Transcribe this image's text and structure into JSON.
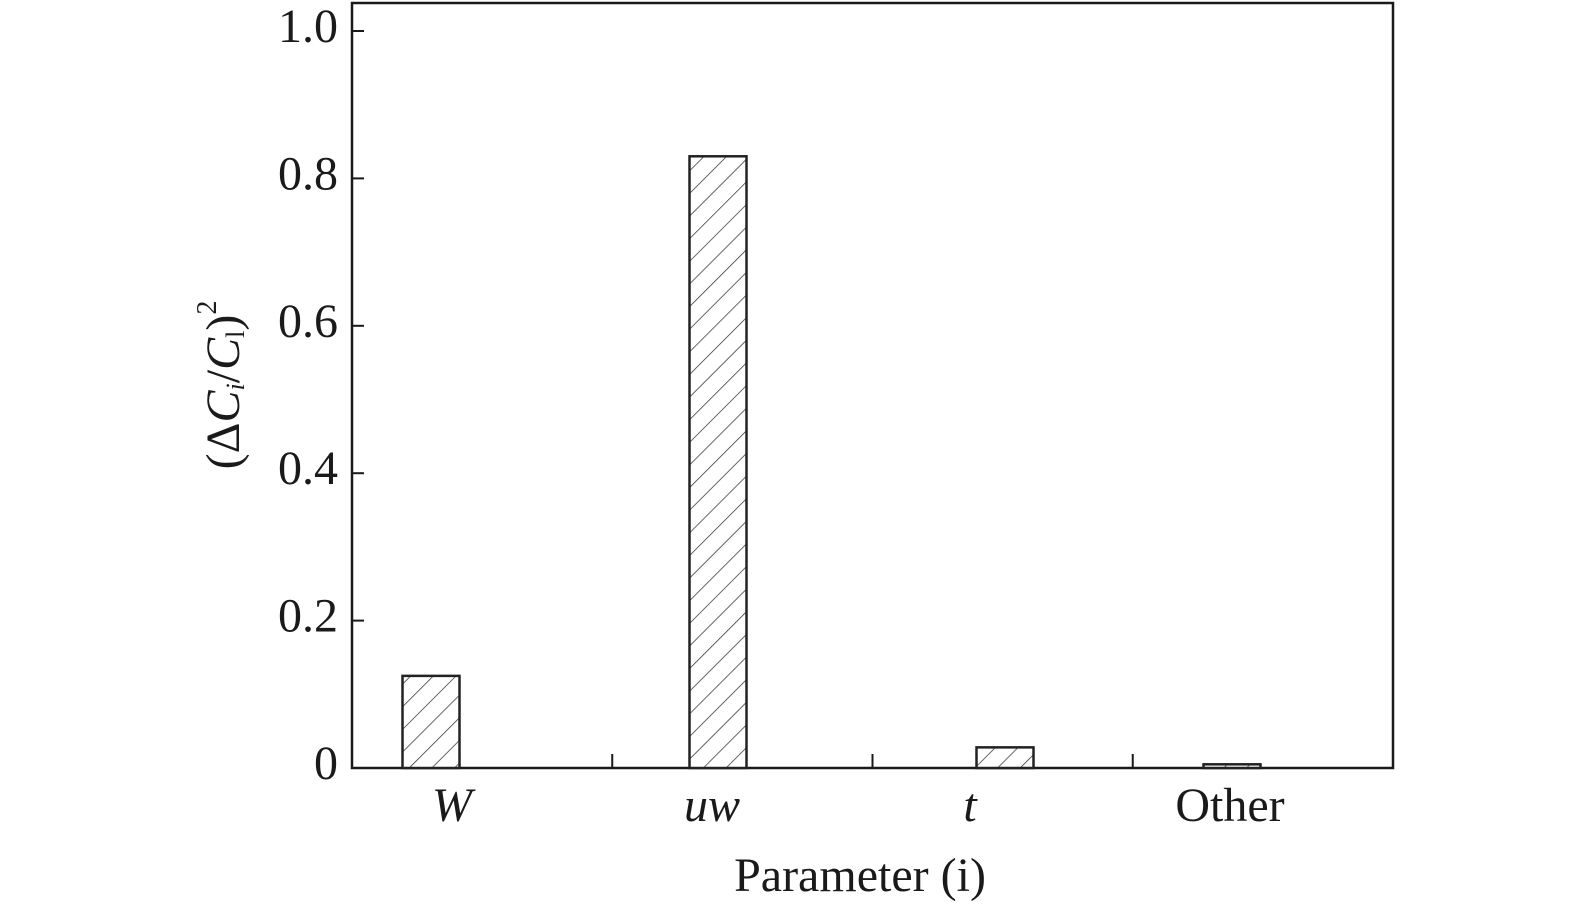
{
  "chart_data": {
    "type": "bar",
    "categories": [
      "W",
      "uw",
      "t",
      "Other"
    ],
    "values": [
      0.125,
      0.83,
      0.028,
      0.005
    ],
    "xlabel": "Parameter (i)",
    "ylabel": [
      "(Δ",
      "C",
      "i",
      "/",
      "C",
      "l",
      ")",
      "2"
    ],
    "ylim": [
      0,
      1.038
    ],
    "yticks": [
      0,
      0.2,
      0.4,
      0.6,
      0.8,
      {
        "value": 1.0,
        "label": "1.0"
      }
    ],
    "color": "#222222"
  }
}
